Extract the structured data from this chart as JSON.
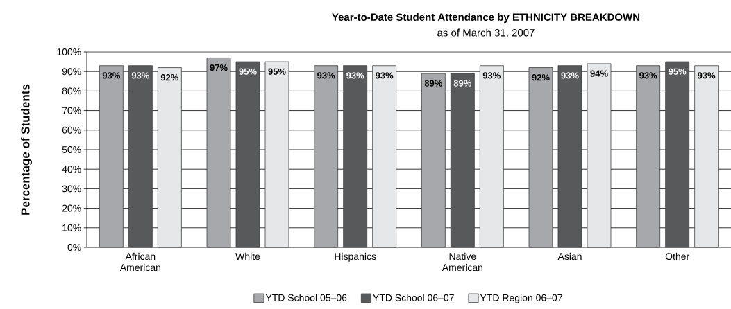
{
  "chart_data": {
    "type": "bar",
    "title": "Year-to-Date Student Attendance by ETHNICITY BREAKDOWN",
    "subtitle": "as of March 31, 2007",
    "ylabel": "Percentage of Students",
    "categories": [
      "African American",
      "White",
      "Hispanics",
      "Native American",
      "Asian",
      "Other"
    ],
    "series": [
      {
        "name": "YTD School 05–06",
        "color": "#a7a8ab",
        "values": [
          93,
          97,
          93,
          89,
          92,
          93
        ],
        "value_labels": [
          "93%",
          "97%",
          "93%",
          "89%",
          "92%",
          "93%"
        ]
      },
      {
        "name": "YTD School 06–07",
        "color": "#58595b",
        "values": [
          93,
          95,
          93,
          89,
          93,
          95
        ],
        "value_labels": [
          "93%",
          "95%",
          "93%",
          "89%",
          "93%",
          "95%"
        ]
      },
      {
        "name": "YTD Region 06–07",
        "color": "#e6e7e8",
        "values": [
          92,
          95,
          93,
          93,
          94,
          93
        ],
        "value_labels": [
          "92%",
          "95%",
          "93%",
          "93%",
          "94%",
          "93%"
        ]
      }
    ],
    "ylim": [
      0,
      100
    ],
    "yticks": [
      {
        "value": 0,
        "label": "0%"
      },
      {
        "value": 10,
        "label": "10%"
      },
      {
        "value": 20,
        "label": "20%"
      },
      {
        "value": 30,
        "label": "30%"
      },
      {
        "value": 40,
        "label": "40%"
      },
      {
        "value": 50,
        "label": "50%"
      },
      {
        "value": 60,
        "label": "60%"
      },
      {
        "value": 70,
        "label": "70%"
      },
      {
        "value": 80,
        "label": "80%"
      },
      {
        "value": 90,
        "label": "90%"
      },
      {
        "value": 100,
        "label": "100%"
      }
    ],
    "grid": "y",
    "legend": "bottom"
  }
}
